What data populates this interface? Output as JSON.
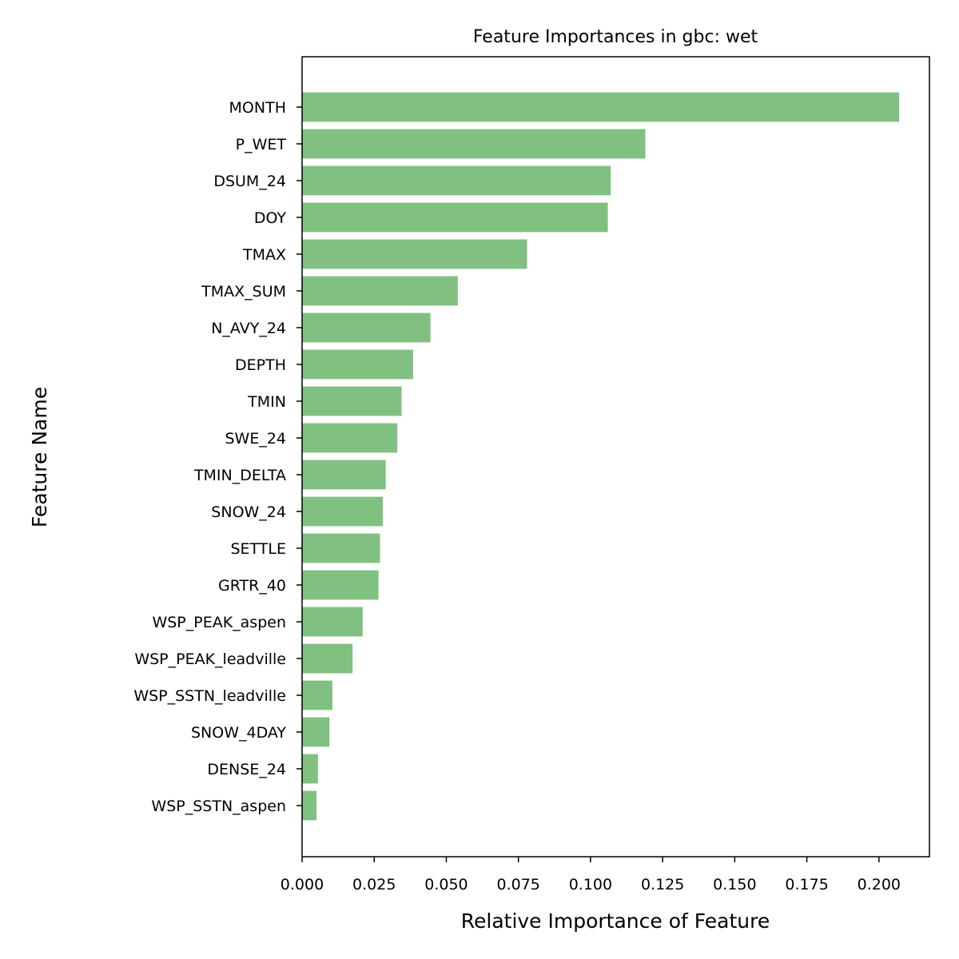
{
  "chart_data": {
    "type": "bar",
    "orientation": "horizontal",
    "title": "Feature Importances in gbc: wet",
    "xlabel": "Relative Importance of Feature",
    "ylabel": "Feature Name",
    "xlim": [
      0,
      0.2175
    ],
    "xticks": [
      "0.000",
      "0.025",
      "0.050",
      "0.075",
      "0.100",
      "0.125",
      "0.150",
      "0.175",
      "0.200"
    ],
    "bar_color": "#80c080",
    "grid": false,
    "categories": [
      "MONTH",
      "P_WET",
      "DSUM_24",
      "DOY",
      "TMAX",
      "TMAX_SUM",
      "N_AVY_24",
      "DEPTH",
      "TMIN",
      "SWE_24",
      "TMIN_DELTA",
      "SNOW_24",
      "SETTLE",
      "GRTR_40",
      "WSP_PEAK_aspen",
      "WSP_PEAK_leadville",
      "WSP_SSTN_leadville",
      "SNOW_4DAY",
      "DENSE_24",
      "WSP_SSTN_aspen"
    ],
    "values": [
      0.207,
      0.119,
      0.107,
      0.106,
      0.078,
      0.054,
      0.0445,
      0.0385,
      0.0345,
      0.033,
      0.029,
      0.028,
      0.027,
      0.0265,
      0.021,
      0.0175,
      0.0105,
      0.0095,
      0.0055,
      0.005
    ]
  }
}
